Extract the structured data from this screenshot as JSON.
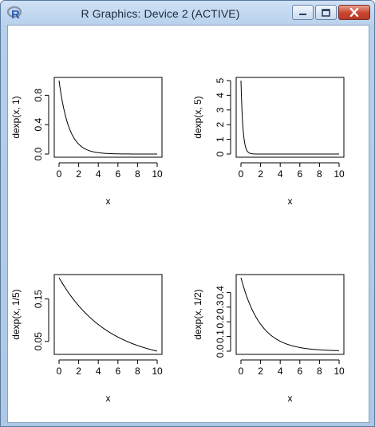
{
  "window": {
    "title": "R Graphics: Device 2 (ACTIVE)",
    "app_icon": "r-logo-icon",
    "controls": {
      "minimize_icon": "minimize-icon",
      "maximize_icon": "maximize-icon",
      "close_icon": "close-icon"
    },
    "colors": {
      "titlebar": "#b9d1ec",
      "close": "#c8432d",
      "line": "#000000"
    }
  },
  "chart_data": [
    {
      "type": "line",
      "xlabel": "x",
      "ylabel": "dexp(x, 1)",
      "rate": 1,
      "xlim": [
        0,
        10
      ],
      "ylim": [
        0,
        1
      ],
      "xticks": [
        "0",
        "2",
        "4",
        "6",
        "8",
        "10"
      ],
      "yticks": [
        "0.0",
        "0.4",
        "0.8"
      ],
      "ytick_values": [
        0,
        0.4,
        0.8
      ]
    },
    {
      "type": "line",
      "xlabel": "x",
      "ylabel": "dexp(x, 5)",
      "rate": 5,
      "xlim": [
        0,
        10
      ],
      "ylim": [
        0,
        5
      ],
      "xticks": [
        "0",
        "2",
        "4",
        "6",
        "8",
        "10"
      ],
      "yticks": [
        "0",
        "1",
        "2",
        "3",
        "4",
        "5"
      ],
      "ytick_values": [
        0,
        1,
        2,
        3,
        4,
        5
      ]
    },
    {
      "type": "line",
      "xlabel": "x",
      "ylabel": "dexp(x, 1/5)",
      "rate": 0.2,
      "xlim": [
        0,
        10
      ],
      "ylim": [
        0.027,
        0.2
      ],
      "xticks": [
        "0",
        "2",
        "4",
        "6",
        "8",
        "10"
      ],
      "yticks": [
        "0.05",
        "0.15"
      ],
      "ytick_values": [
        0.05,
        0.15
      ]
    },
    {
      "type": "line",
      "xlabel": "x",
      "ylabel": "dexp(x, 1/2)",
      "rate": 0.5,
      "xlim": [
        0,
        10
      ],
      "ylim": [
        0,
        0.5
      ],
      "xticks": [
        "0",
        "2",
        "4",
        "6",
        "8",
        "10"
      ],
      "yticks": [
        "0.0",
        "0.1",
        "0.2",
        "0.3",
        "0.4"
      ],
      "ytick_values": [
        0,
        0.1,
        0.2,
        0.3,
        0.4
      ]
    }
  ]
}
